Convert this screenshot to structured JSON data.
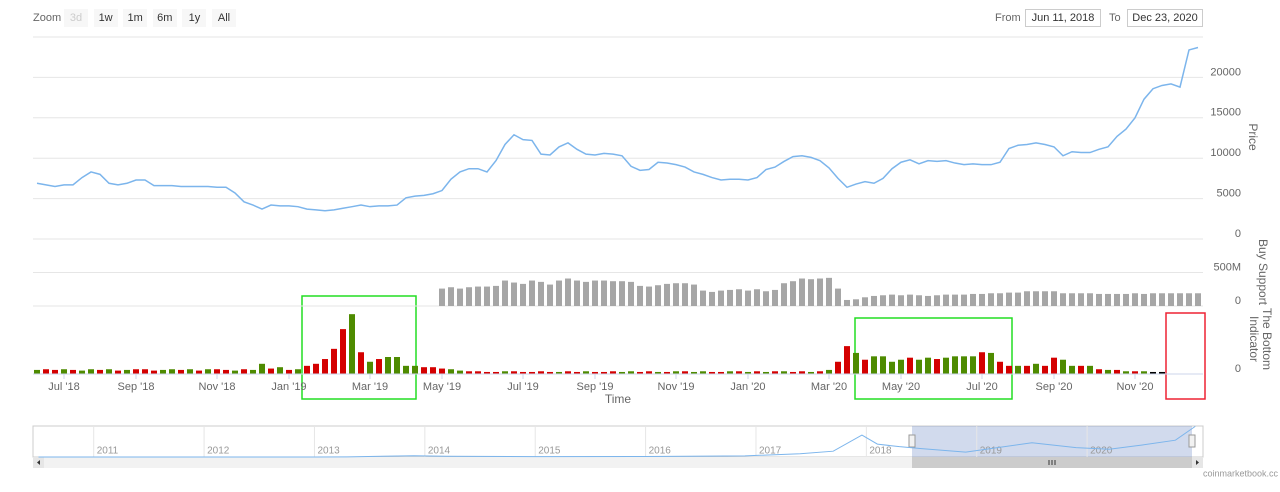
{
  "toolbar": {
    "zoom_label": "Zoom",
    "buttons": [
      "3d",
      "1w",
      "1m",
      "6m",
      "1y",
      "All"
    ],
    "from_label": "From",
    "from": "Jun 11, 2018",
    "to_label": "To",
    "to": "Dec 23, 2020"
  },
  "credit": "coinmarketbook.cc",
  "chart_data": [
    {
      "type": "line",
      "y_label": "Price",
      "color": "#7cb5ec",
      "values": [
        6900,
        6700,
        6500,
        6700,
        6700,
        7600,
        8300,
        8000,
        6900,
        6700,
        6900,
        7300,
        7300,
        6600,
        6600,
        6600,
        6500,
        6500,
        6500,
        6500,
        6400,
        6400,
        5700,
        4600,
        4200,
        3700,
        4200,
        4100,
        4100,
        4000,
        3700,
        3600,
        3500,
        3600,
        3800,
        4000,
        4200,
        4000,
        4100,
        4100,
        4200,
        5100,
        5300,
        5400,
        5600,
        6000,
        7400,
        8300,
        8700,
        8700,
        8300,
        9700,
        11700,
        12900,
        12300,
        12200,
        10500,
        10400,
        11400,
        11900,
        11100,
        10500,
        10400,
        10600,
        10500,
        10300,
        9000,
        8500,
        8600,
        9500,
        9400,
        9200,
        8900,
        8300,
        8000,
        7600,
        7300,
        7400,
        7400,
        7300,
        7600,
        8600,
        8900,
        9600,
        10200,
        10300,
        10100,
        9700,
        8800,
        7500,
        6400,
        6800,
        7100,
        6900,
        7500,
        8700,
        9500,
        9800,
        9300,
        9700,
        9600,
        9700,
        9400,
        9200,
        9300,
        9200,
        9200,
        9500,
        11200,
        11600,
        11700,
        11900,
        11700,
        11400,
        10300,
        10800,
        10700,
        10700,
        11100,
        11400,
        12700,
        13600,
        15000,
        17300,
        18600,
        19000,
        19200,
        18800,
        23400,
        23700
      ],
      "ylim": [
        0,
        25000
      ],
      "yticks": [
        0,
        5000,
        10000,
        15000,
        20000
      ],
      "grid": true
    },
    {
      "type": "bar",
      "y_label": "Buy Support",
      "color": "#a6a6a6",
      "values": [
        null,
        null,
        null,
        null,
        null,
        null,
        null,
        null,
        null,
        null,
        null,
        null,
        null,
        null,
        null,
        null,
        null,
        null,
        null,
        null,
        null,
        null,
        null,
        null,
        null,
        null,
        null,
        null,
        null,
        null,
        null,
        null,
        null,
        null,
        null,
        null,
        null,
        null,
        null,
        null,
        null,
        null,
        null,
        null,
        null,
        260000000,
        280000000,
        260000000,
        280000000,
        290000000,
        290000000,
        300000000,
        380000000,
        350000000,
        330000000,
        380000000,
        360000000,
        320000000,
        380000000,
        410000000,
        380000000,
        360000000,
        380000000,
        380000000,
        370000000,
        370000000,
        360000000,
        300000000,
        290000000,
        310000000,
        330000000,
        340000000,
        340000000,
        320000000,
        230000000,
        210000000,
        230000000,
        240000000,
        250000000,
        230000000,
        250000000,
        220000000,
        240000000,
        340000000,
        370000000,
        410000000,
        400000000,
        410000000,
        420000000,
        260000000,
        90000000,
        100000000,
        130000000,
        150000000,
        160000000,
        170000000,
        160000000,
        170000000,
        160000000,
        150000000,
        160000000,
        170000000,
        170000000,
        170000000,
        180000000,
        180000000,
        190000000,
        190000000,
        200000000,
        200000000,
        220000000,
        220000000,
        220000000,
        220000000,
        190000000,
        190000000,
        190000000,
        190000000,
        180000000,
        180000000,
        180000000,
        180000000,
        190000000,
        180000000,
        190000000,
        190000000,
        190000000,
        190000000,
        190000000,
        190000000
      ],
      "ylim": [
        0,
        1000000000
      ],
      "yticks": [
        0,
        {
          "value": 500000000,
          "label": "500M"
        }
      ],
      "grid": true
    },
    {
      "type": "bar",
      "y_label": "The Bottom Indicator",
      "x_label": "Time",
      "categories": [
        null,
        null,
        null,
        "Jul '18",
        null,
        null,
        null,
        null,
        null,
        null,
        null,
        "Sep '18",
        null,
        null,
        null,
        null,
        null,
        null,
        null,
        null,
        "Nov '18",
        null,
        null,
        null,
        null,
        null,
        null,
        null,
        "Jan '19",
        null,
        null,
        null,
        null,
        null,
        null,
        null,
        null,
        "Mar '19",
        null,
        null,
        null,
        null,
        null,
        null,
        null,
        "May '19",
        null,
        null,
        null,
        null,
        null,
        null,
        null,
        null,
        "Jul '19",
        null,
        null,
        null,
        null,
        null,
        null,
        null,
        "Sep '19",
        null,
        null,
        null,
        null,
        null,
        null,
        null,
        null,
        "Nov '19",
        null,
        null,
        null,
        null,
        null,
        null,
        null,
        "Jan '20",
        null,
        null,
        null,
        null,
        null,
        null,
        null,
        null,
        "Mar '20",
        null,
        null,
        null,
        null,
        null,
        null,
        null,
        "May '20",
        null,
        null,
        null,
        null,
        null,
        null,
        null,
        null,
        "Jul '20",
        null,
        null,
        null,
        null,
        null,
        null,
        null,
        "Sep '20",
        null,
        null,
        null,
        null,
        null,
        null,
        null,
        null,
        "Nov '20",
        null,
        null,
        null,
        null,
        null,
        null,
        null
      ],
      "values": [
        6,
        7,
        6,
        7,
        6,
        5,
        7,
        6,
        7,
        5,
        6,
        7,
        7,
        5,
        6,
        7,
        6,
        7,
        5,
        7,
        7,
        6,
        5,
        7,
        6,
        15,
        8,
        10,
        6,
        7,
        12,
        15,
        22,
        37,
        66,
        88,
        32,
        18,
        22,
        25,
        25,
        12,
        12,
        10,
        10,
        8,
        7,
        5,
        4,
        4,
        3,
        3,
        4,
        4,
        3,
        3,
        4,
        3,
        3,
        4,
        3,
        4,
        3,
        3,
        4,
        3,
        4,
        3,
        4,
        3,
        3,
        4,
        4,
        3,
        4,
        3,
        3,
        4,
        4,
        3,
        4,
        3,
        4,
        4,
        3,
        4,
        3,
        4,
        6,
        18,
        41,
        31,
        21,
        26,
        26,
        18,
        21,
        24,
        21,
        24,
        22,
        24,
        26,
        26,
        26,
        32,
        31,
        18,
        12,
        12,
        12,
        15,
        12,
        24,
        21,
        12,
        12,
        12,
        7,
        6,
        6,
        4,
        4,
        4,
        3,
        3,
        null,
        null,
        null,
        null
      ],
      "palette": [
        "#d40000",
        "#4e8b00"
      ],
      "color_index": [
        1,
        0,
        0,
        1,
        0,
        1,
        1,
        0,
        1,
        0,
        1,
        0,
        0,
        0,
        1,
        1,
        0,
        1,
        0,
        1,
        0,
        0,
        1,
        0,
        1,
        1,
        0,
        1,
        0,
        1,
        0,
        0,
        0,
        0,
        0,
        1,
        0,
        1,
        0,
        1,
        1,
        1,
        1,
        0,
        0,
        0,
        1,
        1,
        0,
        0,
        0,
        0,
        1,
        0,
        0,
        0,
        0,
        0,
        1,
        0,
        0,
        1,
        0,
        0,
        0,
        1,
        1,
        0,
        0,
        1,
        0,
        1,
        0,
        1,
        1,
        0,
        0,
        1,
        0,
        1,
        0,
        1,
        0,
        1,
        0,
        0,
        1,
        0,
        1,
        0,
        0,
        1,
        0,
        1,
        1,
        1,
        1,
        0,
        1,
        1,
        0,
        1,
        1,
        1,
        1,
        0,
        1,
        0,
        0,
        1,
        0,
        1,
        0,
        0,
        1,
        1,
        0,
        1,
        0,
        1,
        0,
        1,
        0,
        1,
        null,
        null,
        null,
        null
      ],
      "ylim": [
        0,
        100
      ],
      "yticks": [
        0
      ]
    },
    {
      "type": "line",
      "color": "#7cb5ec",
      "x": [
        2010.5,
        2011,
        2011.5,
        2012,
        2012.5,
        2013,
        2013.3,
        2013.9,
        2014.2,
        2015,
        2016,
        2016.9,
        2017.4,
        2017.7,
        2017.96,
        2018.1,
        2018.3,
        2018.5,
        2018.9,
        2019.5,
        2019.9,
        2020.2,
        2020.5,
        2020.8,
        2020.98
      ],
      "values": [
        0,
        10,
        20,
        10,
        10,
        20,
        100,
        1000,
        600,
        300,
        400,
        900,
        2500,
        4500,
        17000,
        10000,
        8000,
        6500,
        3800,
        11000,
        7300,
        6000,
        9300,
        13000,
        23700
      ],
      "xlim": [
        2010.45,
        2021.05
      ],
      "xticks": [
        2011,
        2012,
        2013,
        2014,
        2015,
        2016,
        2017,
        2018,
        2019,
        2020
      ],
      "ylim": [
        0,
        24000
      ]
    }
  ]
}
